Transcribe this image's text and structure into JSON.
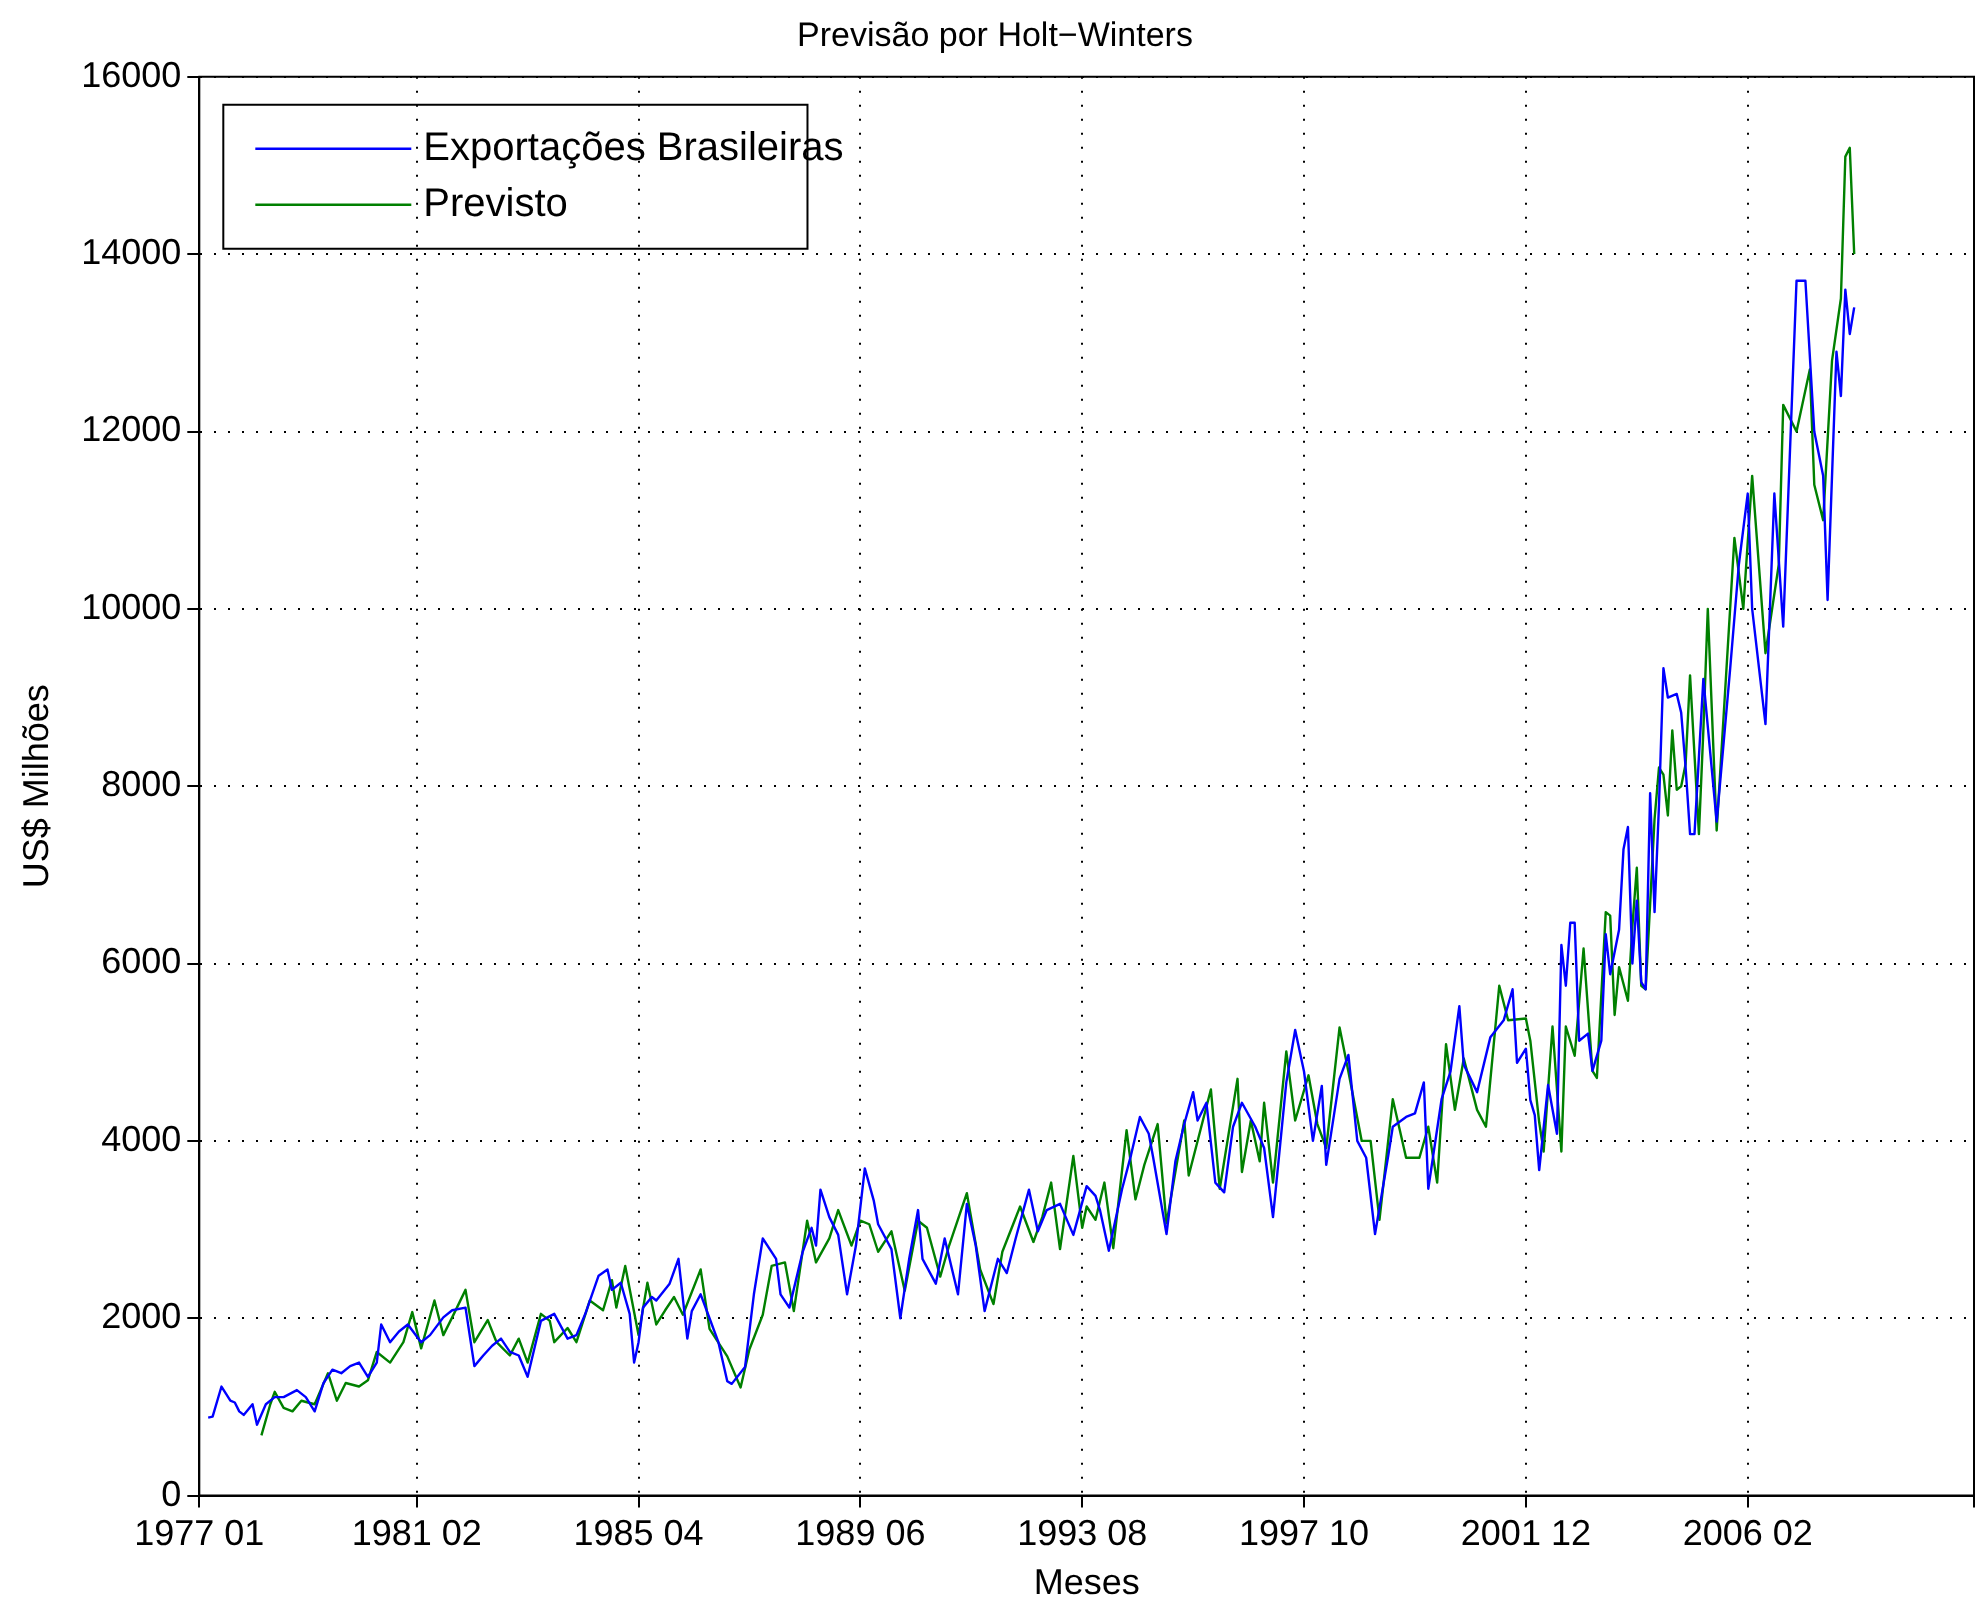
{
  "chart_data": {
    "type": "line",
    "title": "Previsão por Holt−Winters",
    "xlabel": "Meses",
    "ylabel": "US$ Milhões",
    "xlim": [
      "1977-01",
      "2010-05"
    ],
    "xticks": [
      {
        "value": "1977-01",
        "label": "1977 01"
      },
      {
        "value": "1981-02",
        "label": "1981 02"
      },
      {
        "value": "1985-04",
        "label": "1985 04"
      },
      {
        "value": "1989-06",
        "label": "1989 06"
      },
      {
        "value": "1993-08",
        "label": "1993 08"
      },
      {
        "value": "1997-10",
        "label": "1997 10"
      },
      {
        "value": "2001-12",
        "label": "2001 12"
      },
      {
        "value": "2006-02",
        "label": "2006 02"
      },
      {
        "value": "2010-05",
        "label": null
      }
    ],
    "ylim": [
      0,
      16000
    ],
    "yticks": [
      0,
      2000,
      4000,
      6000,
      8000,
      10000,
      12000,
      14000,
      16000
    ],
    "grid": true,
    "legend": "top left",
    "series": [
      {
        "name": "Exportações Brasileiras",
        "color": "#0000ff",
        "x": [
          "1977-03",
          "1977-04",
          "1977-06",
          "1977-08",
          "1977-09",
          "1977-10",
          "1977-11",
          "1978-01",
          "1978-02",
          "1978-04",
          "1978-06",
          "1978-08",
          "1978-11",
          "1979-01",
          "1979-03",
          "1979-05",
          "1979-07",
          "1979-09",
          "1979-11",
          "1980-01",
          "1980-03",
          "1980-05",
          "1980-06",
          "1980-08",
          "1980-10",
          "1980-12",
          "1981-03",
          "1981-05",
          "1981-08",
          "1981-10",
          "1982-01",
          "1982-03",
          "1982-05",
          "1982-07",
          "1982-09",
          "1982-11",
          "1983-01",
          "1983-03",
          "1983-06",
          "1983-09",
          "1983-12",
          "1984-02",
          "1984-04",
          "1984-07",
          "1984-09",
          "1984-10",
          "1984-12",
          "1985-02",
          "1985-03",
          "1985-04",
          "1985-05",
          "1985-07",
          "1985-08",
          "1985-11",
          "1986-01",
          "1986-03",
          "1986-04",
          "1986-06",
          "1986-08",
          "1986-10",
          "1986-12",
          "1987-01",
          "1987-04",
          "1987-06",
          "1987-08",
          "1987-11",
          "1987-12",
          "1988-02",
          "1988-05",
          "1988-07",
          "1988-08",
          "1988-09",
          "1988-11",
          "1989-01",
          "1989-03",
          "1989-05",
          "1989-07",
          "1989-09",
          "1989-10",
          "1990-01",
          "1990-03",
          "1990-05",
          "1990-07",
          "1990-08",
          "1990-11",
          "1991-01",
          "1991-04",
          "1991-06",
          "1991-08",
          "1991-10",
          "1992-01",
          "1992-03",
          "1992-05",
          "1992-08",
          "1992-10",
          "1992-12",
          "1993-03",
          "1993-06",
          "1993-09",
          "1993-11",
          "1993-12",
          "1994-02",
          "1994-05",
          "1994-07",
          "1994-09",
          "1994-11",
          "1994-12",
          "1995-03",
          "1995-05",
          "1995-07",
          "1995-09",
          "1995-10",
          "1995-12",
          "1996-02",
          "1996-04",
          "1996-06",
          "1996-08",
          "1996-11",
          "1997-01",
          "1997-03",
          "1997-06",
          "1997-08",
          "1997-10",
          "1997-12",
          "1998-02",
          "1998-03",
          "1998-06",
          "1998-08",
          "1998-10",
          "1998-12",
          "1999-02",
          "1999-05",
          "1999-06",
          "1999-09",
          "1999-11",
          "2000-01",
          "2000-02",
          "2000-05",
          "2000-07",
          "2000-09",
          "2000-10",
          "2001-01",
          "2001-04",
          "2001-07",
          "2001-09",
          "2001-10",
          "2001-12",
          "2002-01",
          "2002-02",
          "2002-03",
          "2002-05",
          "2002-07",
          "2002-08",
          "2002-09",
          "2002-10",
          "2002-11",
          "2002-12",
          "2003-02",
          "2003-03",
          "2003-05",
          "2003-06",
          "2003-07",
          "2003-09",
          "2003-10",
          "2003-11",
          "2003-12",
          "2004-01",
          "2004-02",
          "2004-03",
          "2004-04",
          "2004-05",
          "2004-06",
          "2004-07",
          "2004-08",
          "2004-10",
          "2004-11",
          "2004-12",
          "2005-01",
          "2005-02",
          "2005-03",
          "2005-04",
          "2005-07",
          "2005-10",
          "2005-12",
          "2006-02",
          "2006-03",
          "2006-06",
          "2006-08",
          "2006-10",
          "2007-01",
          "2007-03",
          "2007-05",
          "2007-07",
          "2007-08",
          "2007-10",
          "2007-11",
          "2007-12",
          "2008-01",
          "2008-02"
        ],
        "values": [
          880,
          890,
          1230,
          1070,
          1050,
          950,
          910,
          1030,
          800,
          1030,
          1110,
          1110,
          1190,
          1110,
          950,
          1270,
          1420,
          1380,
          1460,
          1500,
          1340,
          1500,
          1930,
          1730,
          1850,
          1930,
          1730,
          1810,
          2010,
          2090,
          2120,
          1460,
          1580,
          1690,
          1770,
          1620,
          1580,
          1340,
          1970,
          2050,
          1770,
          1810,
          2050,
          2480,
          2550,
          2320,
          2400,
          2050,
          1500,
          1730,
          2120,
          2240,
          2200,
          2390,
          2670,
          1770,
          2080,
          2270,
          2000,
          1730,
          1290,
          1260,
          1450,
          2270,
          2900,
          2670,
          2270,
          2120,
          2750,
          3020,
          2820,
          3450,
          3140,
          2940,
          2270,
          2820,
          3690,
          3330,
          3060,
          2780,
          2000,
          2670,
          3220,
          2670,
          2390,
          2900,
          2270,
          3290,
          2820,
          2080,
          2670,
          2510,
          2900,
          3450,
          2980,
          3220,
          3290,
          2940,
          3490,
          3380,
          3220,
          2760,
          3460,
          3840,
          4270,
          4080,
          3810,
          2950,
          3770,
          4190,
          4550,
          4230,
          4430,
          3530,
          3420,
          4160,
          4430,
          4160,
          3920,
          3140,
          4660,
          5250,
          4780,
          4000,
          4620,
          3730,
          4700,
          4970,
          4000,
          3810,
          2950,
          3840,
          4160,
          4270,
          4310,
          4660,
          3460,
          4470,
          4780,
          5520,
          4860,
          4550,
          5170,
          5360,
          5710,
          4880,
          5040,
          4460,
          4290,
          3670,
          4630,
          4080,
          6210,
          5750,
          6460,
          6460,
          5130,
          5210,
          4790,
          5130,
          6330,
          5880,
          6380,
          7290,
          7540,
          6000,
          6710,
          5790,
          5710,
          7920,
          6580,
          7790,
          9330,
          9000,
          9040,
          8830,
          8210,
          7460,
          7460,
          8330,
          9210,
          7600,
          9300,
          10500,
          11300,
          10000,
          8700,
          11300,
          9800,
          13700,
          13700,
          12000,
          11500,
          10100,
          12900,
          12400,
          13600,
          13100,
          13400
        ]
      },
      {
        "name": "Previsto",
        "color": "#008000",
        "x": [
          "1978-03",
          "1978-05",
          "1978-06",
          "1978-08",
          "1978-10",
          "1978-12",
          "1979-03",
          "1979-06",
          "1979-08",
          "1979-10",
          "1980-01",
          "1980-03",
          "1980-05",
          "1980-08",
          "1980-11",
          "1981-01",
          "1981-03",
          "1981-06",
          "1981-08",
          "1981-10",
          "1982-01",
          "1982-03",
          "1982-06",
          "1982-08",
          "1982-11",
          "1983-01",
          "1983-03",
          "1983-06",
          "1983-08",
          "1983-09",
          "1983-12",
          "1984-02",
          "1984-05",
          "1984-08",
          "1984-10",
          "1984-11",
          "1985-01",
          "1985-04",
          "1985-06",
          "1985-08",
          "1985-10",
          "1985-12",
          "1986-02",
          "1986-06",
          "1986-08",
          "1986-12",
          "1987-03",
          "1987-05",
          "1987-08",
          "1987-10",
          "1988-01",
          "1988-03",
          "1988-06",
          "1988-08",
          "1988-11",
          "1989-01",
          "1989-04",
          "1989-06",
          "1989-08",
          "1989-10",
          "1990-01",
          "1990-04",
          "1990-07",
          "1990-09",
          "1990-12",
          "1991-02",
          "1991-06",
          "1991-09",
          "1991-12",
          "1992-02",
          "1992-06",
          "1992-09",
          "1992-11",
          "1993-01",
          "1993-03",
          "1993-06",
          "1993-08",
          "1993-09",
          "1993-11",
          "1994-01",
          "1994-03",
          "1994-06",
          "1994-08",
          "1994-10",
          "1995-01",
          "1995-03",
          "1995-07",
          "1995-08",
          "1996-01",
          "1996-03",
          "1996-07",
          "1996-08",
          "1996-10",
          "1996-12",
          "1997-01",
          "1997-03",
          "1997-06",
          "1997-08",
          "1997-11",
          "1998-01",
          "1998-03",
          "1998-06",
          "1998-08",
          "1998-11",
          "1999-01",
          "1999-03",
          "1999-06",
          "1999-09",
          "1999-12",
          "2000-02",
          "2000-04",
          "2000-06",
          "2000-08",
          "2000-10",
          "2001-01",
          "2001-03",
          "2001-06",
          "2001-08",
          "2001-12",
          "2002-01",
          "2002-03",
          "2002-04",
          "2002-06",
          "2002-08",
          "2002-09",
          "2002-11",
          "2003-01",
          "2003-03",
          "2003-04",
          "2003-06",
          "2003-07",
          "2003-08",
          "2003-09",
          "2003-11",
          "2003-12",
          "2004-01",
          "2004-02",
          "2004-03",
          "2004-05",
          "2004-06",
          "2004-07",
          "2004-08",
          "2004-09",
          "2004-10",
          "2004-11",
          "2004-12",
          "2005-01",
          "2005-03",
          "2005-04",
          "2005-05",
          "2005-07",
          "2005-11",
          "2006-01",
          "2006-03",
          "2006-06",
          "2006-09",
          "2006-10",
          "2007-01",
          "2007-04",
          "2007-05",
          "2007-07",
          "2007-09",
          "2007-11",
          "2007-12",
          "2008-01",
          "2008-02"
        ],
        "values": [
          680,
          1030,
          1170,
          990,
          950,
          1070,
          1030,
          1380,
          1070,
          1270,
          1230,
          1300,
          1620,
          1500,
          1730,
          2070,
          1660,
          2200,
          1810,
          2010,
          2320,
          1730,
          1980,
          1730,
          1580,
          1770,
          1500,
          2050,
          1970,
          1730,
          1890,
          1730,
          2200,
          2090,
          2430,
          2120,
          2590,
          1810,
          2400,
          1930,
          2090,
          2240,
          2040,
          2550,
          1880,
          1570,
          1220,
          1650,
          2040,
          2590,
          2630,
          2080,
          3100,
          2630,
          2900,
          3220,
          2820,
          3100,
          3060,
          2750,
          2980,
          2310,
          3100,
          3020,
          2470,
          2820,
          3410,
          2550,
          2160,
          2750,
          3260,
          2860,
          3140,
          3530,
          2780,
          3830,
          3020,
          3260,
          3110,
          3530,
          2790,
          4120,
          3340,
          3730,
          4190,
          3070,
          4230,
          3610,
          4580,
          3460,
          4700,
          3650,
          4230,
          3770,
          4430,
          3530,
          5010,
          4230,
          4740,
          4190,
          3920,
          5280,
          4780,
          4000,
          4000,
          3110,
          4470,
          3810,
          3810,
          4160,
          3530,
          5090,
          4350,
          4930,
          4350,
          4160,
          5750,
          5360,
          5380,
          5130,
          4210,
          3880,
          5290,
          3880,
          5290,
          4960,
          6170,
          4790,
          4710,
          6580,
          6540,
          5420,
          5960,
          5580,
          6420,
          7080,
          5750,
          5710,
          7630,
          8210,
          8130,
          7670,
          8630,
          7960,
          8000,
          8250,
          9250,
          7460,
          8630,
          10000,
          7500,
          10800,
          10000,
          11500,
          9500,
          10500,
          12300,
          12000,
          12700,
          11400,
          11000,
          12800,
          13500,
          15100,
          15200,
          14000
        ]
      }
    ]
  }
}
